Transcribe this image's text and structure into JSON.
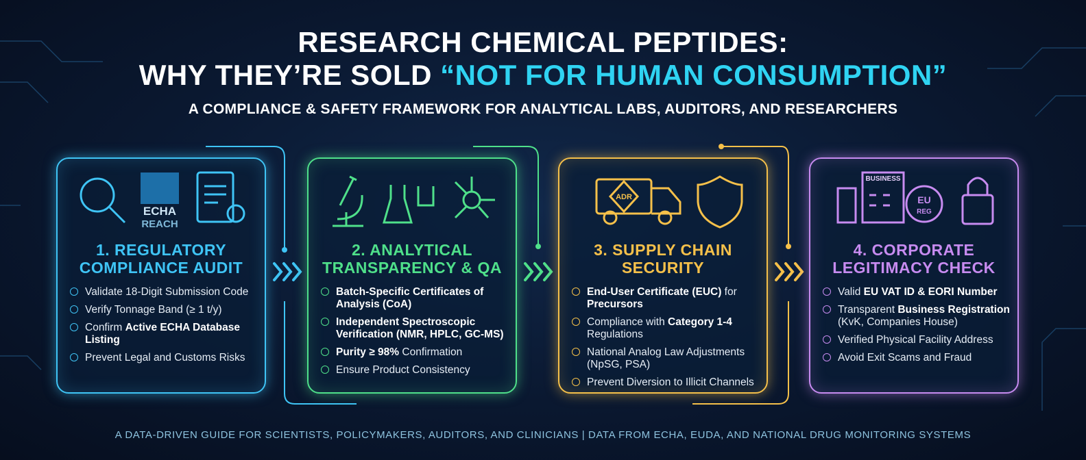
{
  "header": {
    "title_line1": "RESEARCH CHEMICAL PEPTIDES:",
    "title_line2_start": "WHY THEY’RE SOLD",
    "title_line2_highlight": "“NOT FOR HUMAN CONSUMPTION”",
    "subtitle": "A COMPLIANCE & SAFETY FRAMEWORK FOR ANALYTICAL LABS, AUDITORS, AND RESEARCHERS"
  },
  "icons": {
    "echa": "ECHA",
    "reach": "REACH",
    "adr": "ADR",
    "business": "BUSINESS",
    "eu": "EU",
    "reg": "REG"
  },
  "cards": [
    {
      "color": "#3fc4f5",
      "title": [
        "1. REGULATORY",
        "COMPLIANCE AUDIT"
      ],
      "bullets": [
        [
          {
            "text": "Validate 18-Digit Submission Code",
            "bold": false
          }
        ],
        [
          {
            "text": "Verify Tonnage Band (≥ 1 t/y)",
            "bold": false
          }
        ],
        [
          {
            "text": "Confirm ",
            "bold": false
          },
          {
            "text": "Active ECHA Database Listing",
            "bold": true
          }
        ],
        [
          {
            "text": "Prevent Legal and Customs Risks",
            "bold": false
          }
        ]
      ]
    },
    {
      "color": "#4fe08a",
      "title": [
        "2. ANALYTICAL",
        "TRANSPARENCY & QA"
      ],
      "bullets": [
        [
          {
            "text": "Batch-Specific Certificates of Analysis (CoA)",
            "bold": true
          }
        ],
        [
          {
            "text": "Independent Spectroscopic Verification (NMR, HPLC, GC-MS)",
            "bold": true
          }
        ],
        [
          {
            "text": "Purity ≥ 98%",
            "bold": true
          },
          {
            "text": " Confirmation",
            "bold": false
          }
        ],
        [
          {
            "text": "Ensure Product Consistency",
            "bold": false
          }
        ]
      ]
    },
    {
      "color": "#f5c04a",
      "title": [
        "3. SUPPLY CHAIN",
        "SECURITY"
      ],
      "bullets": [
        [
          {
            "text": "End-User Certificate (EUC)",
            "bold": true
          },
          {
            "text": " for ",
            "bold": false
          },
          {
            "text": "Precursors",
            "bold": true
          }
        ],
        [
          {
            "text": "Compliance with ",
            "bold": false
          },
          {
            "text": "Category 1-4",
            "bold": true
          },
          {
            "text": " Regulations",
            "bold": false
          }
        ],
        [
          {
            "text": "National Analog Law Adjustments (NpSG, PSA)",
            "bold": false
          }
        ],
        [
          {
            "text": "Prevent Diversion to Illicit Channels",
            "bold": false
          }
        ]
      ]
    },
    {
      "color": "#c78bf0",
      "title": [
        "4. CORPORATE",
        "LEGITIMACY CHECK"
      ],
      "bullets": [
        [
          {
            "text": "Valid ",
            "bold": false
          },
          {
            "text": "EU VAT ID & EORI Number",
            "bold": true
          }
        ],
        [
          {
            "text": "Transparent ",
            "bold": false
          },
          {
            "text": "Business Registration",
            "bold": true
          },
          {
            "text": " (KvK, Companies House)",
            "bold": false
          }
        ],
        [
          {
            "text": "Verified Physical Facility Address",
            "bold": false
          }
        ],
        [
          {
            "text": "Avoid Exit Scams and Fraud",
            "bold": false
          }
        ]
      ]
    }
  ],
  "footer": "A DATA-DRIVEN GUIDE FOR SCIENTISTS, POLICYMAKERS, AUDITORS, AND CLINICIANS | DATA FROM ECHA, EUDA, AND NATIONAL DRUG MONITORING SYSTEMS"
}
